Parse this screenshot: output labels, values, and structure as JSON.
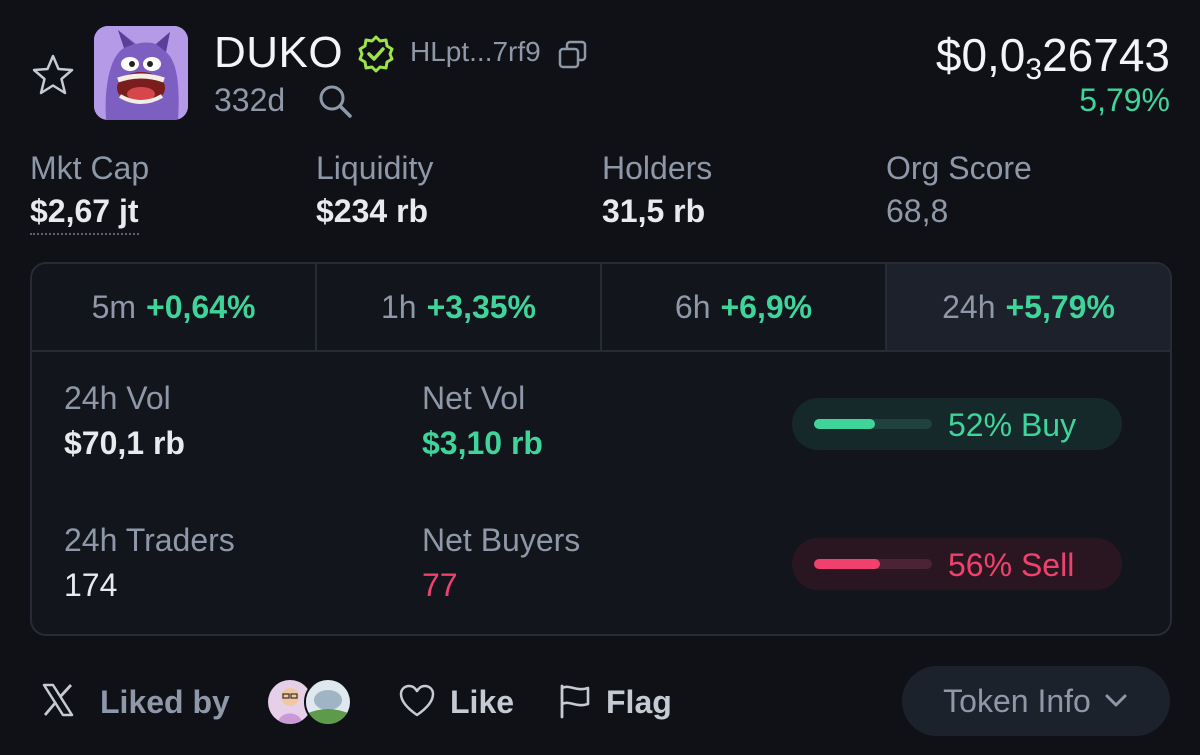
{
  "token": {
    "name": "DUKO",
    "address_short": "HLpt...7rf9",
    "age": "332d"
  },
  "price": {
    "prefix": "$0,0",
    "subscript": "3",
    "digits": "26743",
    "change": "5,79%"
  },
  "stats": [
    {
      "label": "Mkt Cap",
      "value": "$2,67 jt"
    },
    {
      "label": "Liquidity",
      "value": "$234 rb"
    },
    {
      "label": "Holders",
      "value": "31,5 rb"
    },
    {
      "label": "Org Score",
      "value": "68,8"
    }
  ],
  "tabs": [
    {
      "period": "5m",
      "change": "+0,64%"
    },
    {
      "period": "1h",
      "change": "+3,35%"
    },
    {
      "period": "6h",
      "change": "+6,9%"
    },
    {
      "period": "24h",
      "change": "+5,79%"
    }
  ],
  "volume": {
    "vol_label": "24h Vol",
    "vol_value": "$70,1 rb",
    "net_vol_label": "Net Vol",
    "net_vol_value": "$3,10 rb",
    "traders_label": "24h Traders",
    "traders_value": "174",
    "net_buyers_label": "Net Buyers",
    "net_buyers_value": "77"
  },
  "buy_sell": {
    "buy_label": "52% Buy",
    "buy_fraction": 0.52,
    "sell_label": "56% Sell",
    "sell_fraction": 0.56
  },
  "footer": {
    "liked_by": "Liked by",
    "like": "Like",
    "flag": "Flag",
    "token_info": "Token Info"
  },
  "colors": {
    "green": "#3fd49a",
    "red": "#f0406d",
    "background": "#0f1117"
  }
}
